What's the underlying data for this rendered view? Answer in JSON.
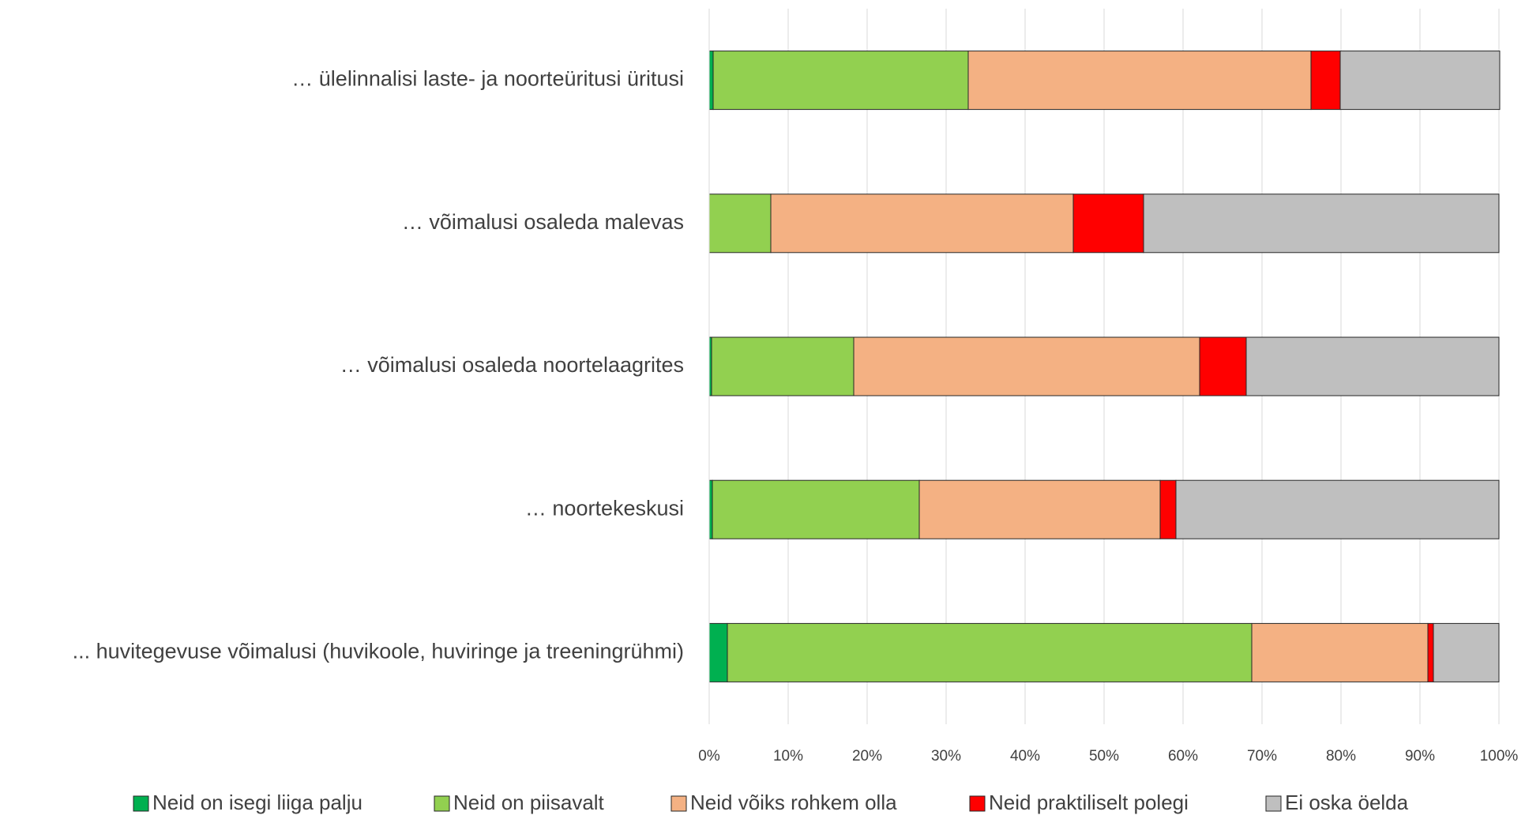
{
  "chart_data": {
    "type": "stacked-barh",
    "categories": [
      "… ülelinnalisi laste- ja noorteüritusi üritusi",
      "… võimalusi osaleda malevas",
      "… võimalusi osaleda noortelaagrites",
      "… noortekeskusi",
      "... huvitegevuse võimalusi (huvikoole, huviringe ja treeningrühmi)"
    ],
    "series": [
      {
        "name": "Neid on isegi liiga palju",
        "color": "#00b050",
        "values": [
          0.5,
          0,
          0.3,
          0.4,
          2.3
        ]
      },
      {
        "name": "Neid on piisavalt",
        "color": "#92d050",
        "values": [
          32.3,
          7.8,
          18.0,
          26.2,
          66.4
        ]
      },
      {
        "name": "Neid võiks rohkem olla",
        "color": "#f4b183",
        "values": [
          43.4,
          38.3,
          43.8,
          30.5,
          22.3
        ]
      },
      {
        "name": "Neid praktiliselt polegi",
        "color": "#ff0000",
        "values": [
          3.7,
          8.9,
          5.9,
          2.0,
          0.7
        ]
      },
      {
        "name": "Ei oska öelda",
        "color": "#bfbfbf",
        "values": [
          20.2,
          45.0,
          32.0,
          40.9,
          8.3
        ]
      }
    ],
    "xlim": [
      0,
      100
    ],
    "xticks": [
      {
        "value": 0,
        "label": "0%"
      },
      {
        "value": 10,
        "label": "10%"
      },
      {
        "value": 20,
        "label": "20%"
      },
      {
        "value": 30,
        "label": "30%"
      },
      {
        "value": 40,
        "label": "40%"
      },
      {
        "value": 50,
        "label": "50%"
      },
      {
        "value": 60,
        "label": "60%"
      },
      {
        "value": 70,
        "label": "70%"
      },
      {
        "value": 80,
        "label": "80%"
      },
      {
        "value": 90,
        "label": "90%"
      },
      {
        "value": 100,
        "label": "100%"
      }
    ],
    "grid": true,
    "legend": "bottom"
  }
}
